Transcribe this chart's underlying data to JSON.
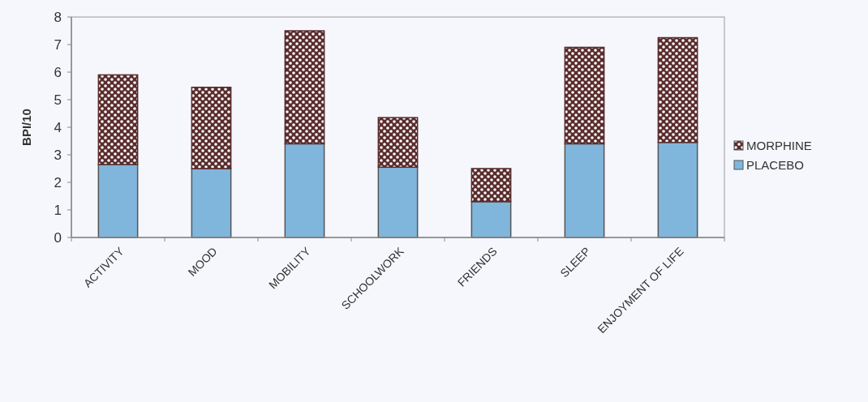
{
  "chart_data": {
    "type": "bar",
    "stacked": true,
    "ylabel": "BPI/10",
    "categories": [
      "ACTIVITY",
      "MOOD",
      "MOBILITY",
      "SCHOOLWORK",
      "FRIENDS",
      "SLEEP",
      "ENJOYMENT OF LIFE"
    ],
    "series": [
      {
        "name": "PLACEBO",
        "color": "#80b6dc",
        "values": [
          2.65,
          2.5,
          3.4,
          2.55,
          1.3,
          3.4,
          3.45
        ]
      },
      {
        "name": "MORPHINE",
        "color": "#5a2c2c",
        "values": [
          3.25,
          2.95,
          4.1,
          1.8,
          1.2,
          3.5,
          3.8
        ]
      }
    ],
    "ylim": [
      0,
      8
    ],
    "yticks": [
      0,
      1,
      2,
      3,
      4,
      5,
      6,
      7,
      8
    ],
    "legend": "right",
    "grid": false
  }
}
